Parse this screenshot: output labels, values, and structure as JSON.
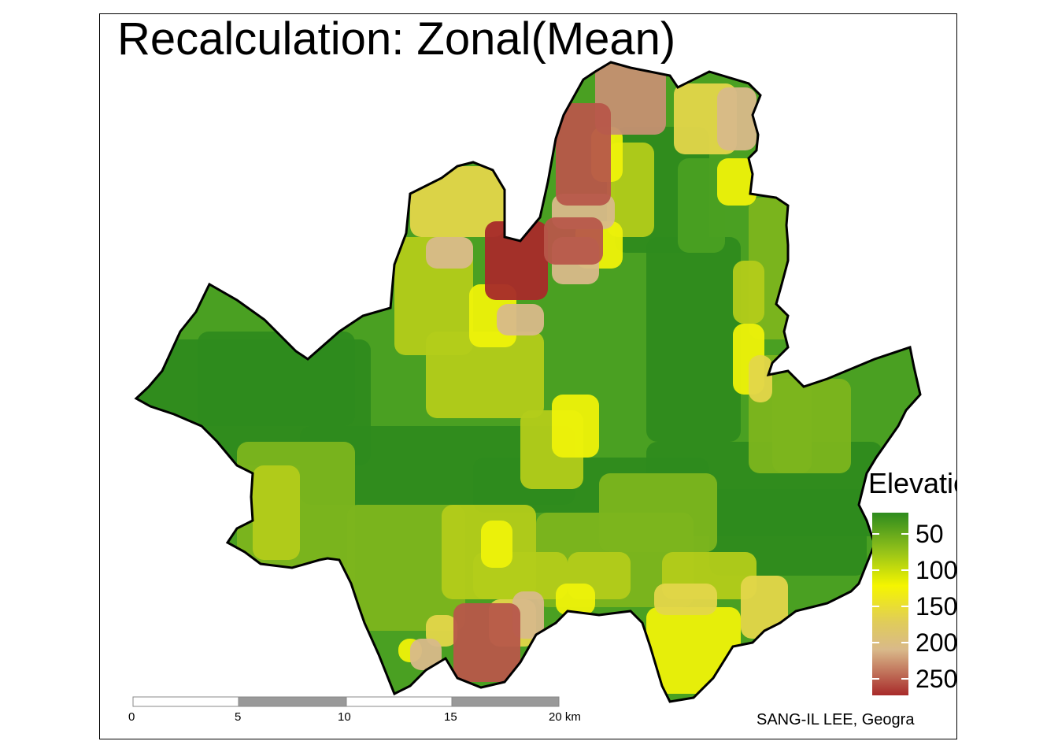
{
  "map": {
    "title": "Recalculation: Zonal(Mean)",
    "credit": "SANG-IL LEE, Geogra"
  },
  "legend": {
    "title": "Elevation(m)",
    "labels": [
      "50",
      "100",
      "150",
      "200",
      "250"
    ],
    "colors": {
      "low": "#2e8b1e",
      "mid_low": "#8fbf1a",
      "mid": "#f5f500",
      "mid_high": "#d9b98a",
      "high": "#a82a2a"
    }
  },
  "scale_bar": {
    "ticks": [
      "0",
      "5",
      "10",
      "15",
      "20 km"
    ]
  },
  "palette": {
    "green_dark": "#2e8b1e",
    "green": "#4aa022",
    "green_light": "#7cb51e",
    "yellow_green": "#b3cc1a",
    "yellow": "#eef20a",
    "pale_yellow": "#e3d64a",
    "tan": "#d8b98a",
    "salmon": "#c59072",
    "brown": "#b7574a",
    "red": "#a82a2a"
  }
}
